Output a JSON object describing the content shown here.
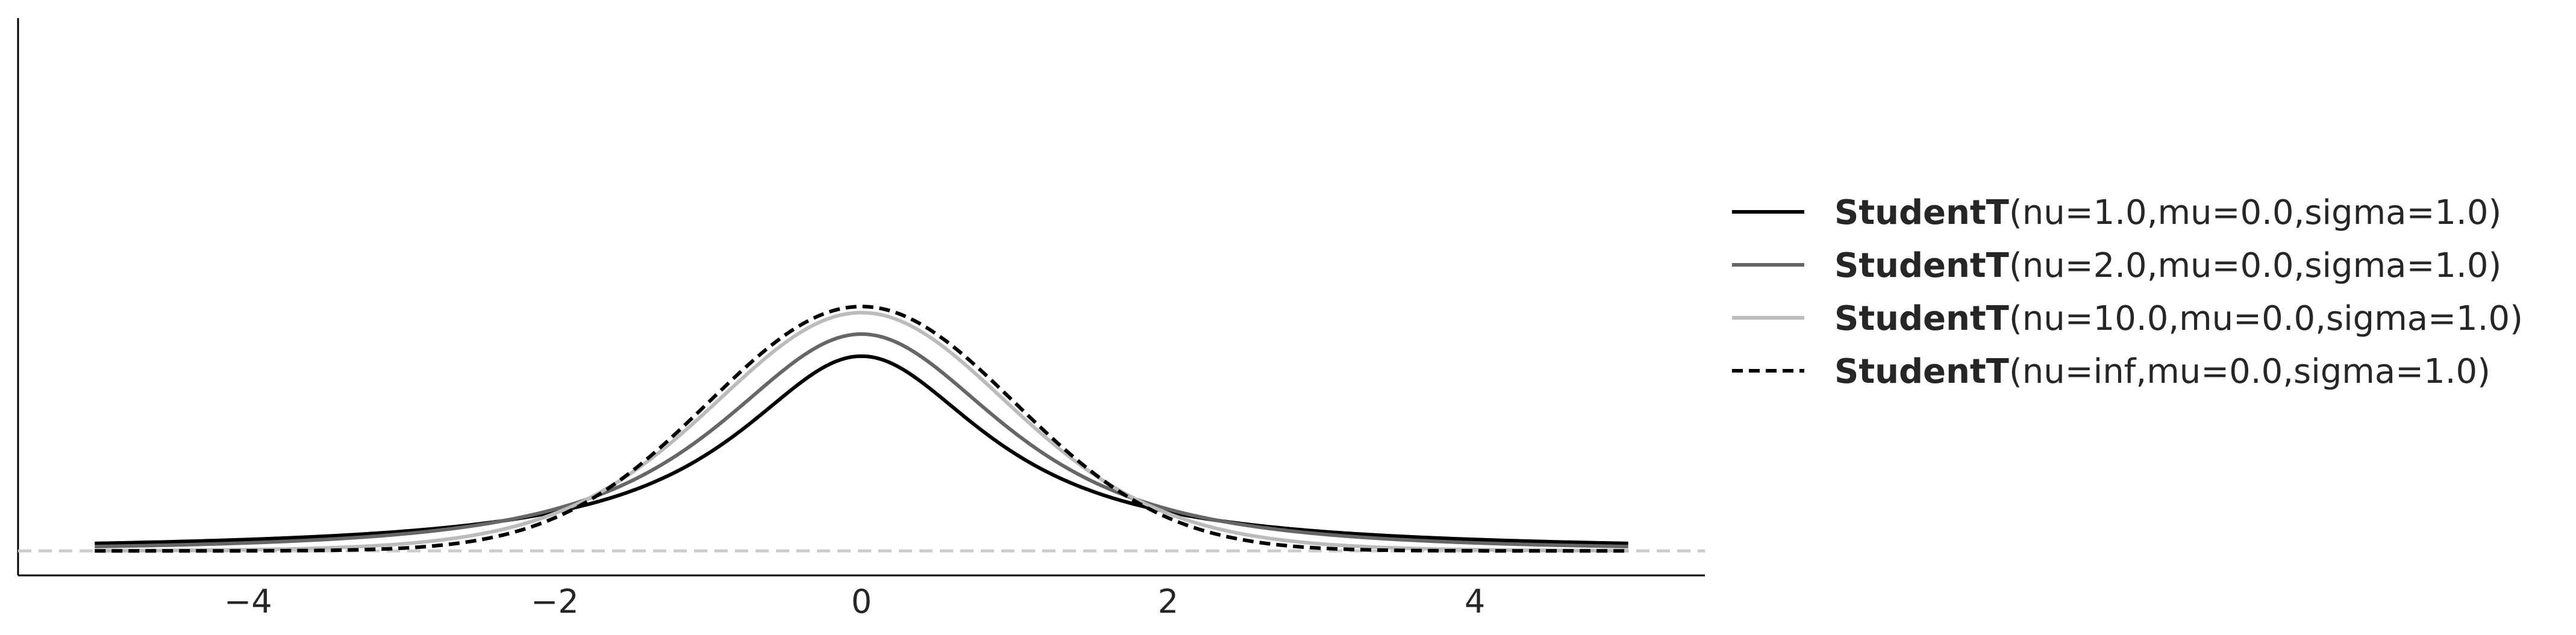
{
  "chart_data": {
    "type": "line",
    "title": "",
    "xlabel": "",
    "ylabel": "",
    "xlim": [
      -5.5,
      5.5
    ],
    "ylim": [
      -0.04,
      0.87
    ],
    "x_domain": [
      -5,
      5
    ],
    "x_ticks": [
      -4,
      -2,
      0,
      2,
      4
    ],
    "x_tick_labels": [
      "−4",
      "−2",
      "0",
      "2",
      "4"
    ],
    "y_ticks_visible": false,
    "grid": false,
    "baseline": {
      "y": 0,
      "color": "#cccccc",
      "style": "dashed"
    },
    "legend_position": "right",
    "series": [
      {
        "legend_name": "StudentT",
        "legend_params": "(nu=1.0,mu=0.0,sigma=1.0)",
        "nu": 1.0,
        "mu": 0.0,
        "sigma": 1.0,
        "color": "#000000",
        "style": "solid",
        "peak": 0.318
      },
      {
        "legend_name": "StudentT",
        "legend_params": "(nu=2.0,mu=0.0,sigma=1.0)",
        "nu": 2.0,
        "mu": 0.0,
        "sigma": 1.0,
        "color": "#666666",
        "style": "solid",
        "peak": 0.354
      },
      {
        "legend_name": "StudentT",
        "legend_params": "(nu=10.0,mu=0.0,sigma=1.0)",
        "nu": 10.0,
        "mu": 0.0,
        "sigma": 1.0,
        "color": "#bbbbbb",
        "style": "solid",
        "peak": 0.389
      },
      {
        "legend_name": "StudentT",
        "legend_params": "(nu=inf,mu=0.0,sigma=1.0)",
        "nu": "inf",
        "mu": 0.0,
        "sigma": 1.0,
        "color": "#000000",
        "style": "dashed",
        "peak": 0.399
      }
    ]
  }
}
